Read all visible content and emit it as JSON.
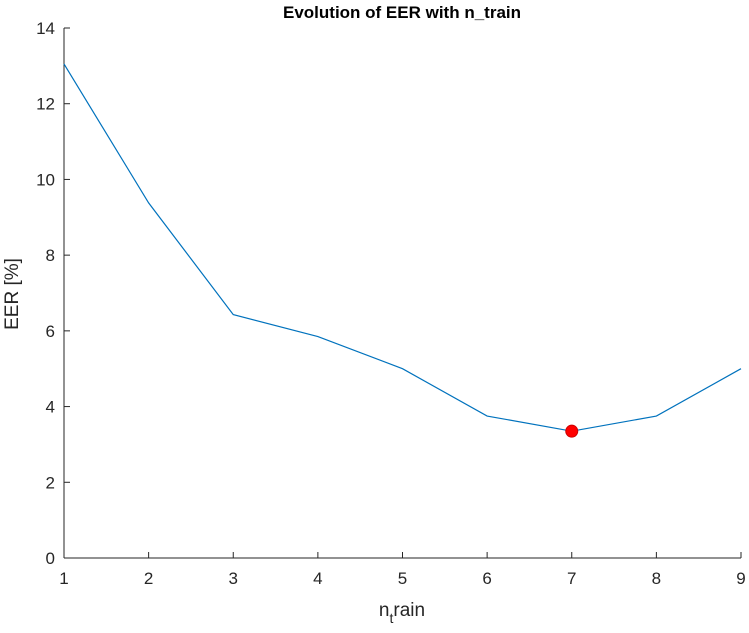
{
  "chart_data": {
    "type": "line",
    "title": "Evolution of EER with n_train",
    "xlabel_main": "n",
    "xlabel_sub": "t",
    "xlabel_rest": "rain",
    "ylabel": "EER [%]",
    "xlim": [
      1,
      9
    ],
    "ylim": [
      0,
      14
    ],
    "xticks": [
      "1",
      "2",
      "3",
      "4",
      "5",
      "6",
      "7",
      "8",
      "9"
    ],
    "yticks": [
      "0",
      "2",
      "4",
      "6",
      "8",
      "10",
      "12",
      "14"
    ],
    "grid": false,
    "series": [
      {
        "x": [
          1,
          2,
          3,
          4,
          5,
          6,
          7,
          8,
          9
        ],
        "values": [
          13.05,
          9.38,
          6.43,
          5.85,
          5.0,
          3.75,
          3.35,
          3.75,
          5.0
        ],
        "color": "#0072BD"
      }
    ],
    "highlight": {
      "x": 7,
      "y": 3.35,
      "color": "#ff0000"
    },
    "axis_color": "#262626"
  }
}
